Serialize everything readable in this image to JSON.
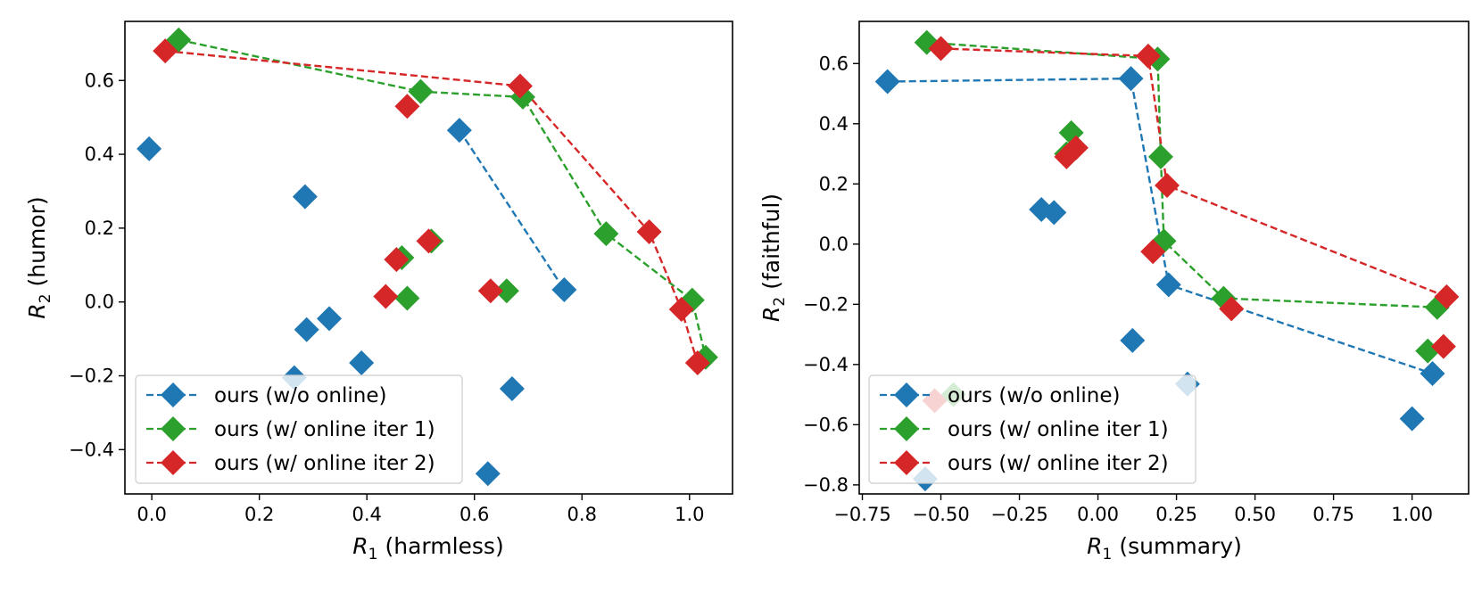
{
  "chart_data": [
    {
      "type": "scatter",
      "title": "",
      "xlabel_var": "R",
      "xlabel_sub": "1",
      "xlabel_text": "(harmless)",
      "ylabel_var": "R",
      "ylabel_sub": "2",
      "ylabel_text": "(humor)",
      "xlim": [
        -0.05,
        1.08
      ],
      "ylim": [
        -0.52,
        0.76
      ],
      "xticks": [
        0.0,
        0.2,
        0.4,
        0.6,
        0.8,
        1.0
      ],
      "xtick_labels": [
        "0.0",
        "0.2",
        "0.4",
        "0.6",
        "0.8",
        "1.0"
      ],
      "yticks": [
        -0.4,
        -0.2,
        0.0,
        0.2,
        0.4,
        0.6
      ],
      "ytick_labels": [
        "−0.4",
        "−0.2",
        "0.0",
        "0.2",
        "0.4",
        "0.6"
      ],
      "legend_position": "lower-left",
      "series": [
        {
          "name": "ours (w/o online)",
          "color": "#1f77b4",
          "points": [
            [
              -0.005,
              0.415
            ],
            [
              0.285,
              0.285
            ],
            [
              0.288,
              -0.075
            ],
            [
              0.33,
              -0.045
            ],
            [
              0.39,
              -0.165
            ],
            [
              0.265,
              -0.205
            ],
            [
              0.572,
              0.465
            ],
            [
              0.767,
              0.033
            ],
            [
              0.67,
              -0.235
            ],
            [
              0.625,
              -0.465
            ]
          ],
          "front": [
            [
              0.572,
              0.465
            ],
            [
              0.767,
              0.033
            ]
          ]
        },
        {
          "name": "ours (w/ online iter 1)",
          "color": "#2ca02c",
          "points": [
            [
              0.05,
              0.71
            ],
            [
              0.5,
              0.57
            ],
            [
              0.69,
              0.555
            ],
            [
              0.845,
              0.185
            ],
            [
              1.005,
              0.005
            ],
            [
              1.03,
              -0.15
            ],
            [
              0.465,
              0.12
            ],
            [
              0.52,
              0.165
            ],
            [
              0.475,
              0.01
            ],
            [
              0.66,
              0.03
            ]
          ],
          "front": [
            [
              0.05,
              0.71
            ],
            [
              0.5,
              0.57
            ],
            [
              0.69,
              0.555
            ],
            [
              0.845,
              0.185
            ],
            [
              1.005,
              0.005
            ],
            [
              1.03,
              -0.15
            ]
          ]
        },
        {
          "name": "ours (w/ online iter 2)",
          "color": "#d62728",
          "points": [
            [
              0.025,
              0.68
            ],
            [
              0.685,
              0.585
            ],
            [
              0.925,
              0.19
            ],
            [
              0.985,
              -0.02
            ],
            [
              1.015,
              -0.165
            ],
            [
              0.475,
              0.53
            ],
            [
              0.455,
              0.115
            ],
            [
              0.515,
              0.165
            ],
            [
              0.435,
              0.015
            ],
            [
              0.63,
              0.03
            ]
          ],
          "front": [
            [
              0.025,
              0.68
            ],
            [
              0.685,
              0.585
            ],
            [
              0.925,
              0.19
            ],
            [
              0.985,
              -0.02
            ],
            [
              1.015,
              -0.165
            ]
          ]
        }
      ]
    },
    {
      "type": "scatter",
      "title": "",
      "xlabel_var": "R",
      "xlabel_sub": "1",
      "xlabel_text": "(summary)",
      "ylabel_var": "R",
      "ylabel_sub": "2",
      "ylabel_text": "(faithful)",
      "xlim": [
        -0.76,
        1.18
      ],
      "ylim": [
        -0.83,
        0.74
      ],
      "xticks": [
        -0.75,
        -0.5,
        -0.25,
        0.0,
        0.25,
        0.5,
        0.75,
        1.0
      ],
      "xtick_labels": [
        "−0.75",
        "−0.50",
        "−0.25",
        "0.00",
        "0.25",
        "0.50",
        "0.75",
        "1.00"
      ],
      "yticks": [
        -0.8,
        -0.6,
        -0.4,
        -0.2,
        0.0,
        0.2,
        0.4,
        0.6
      ],
      "ytick_labels": [
        "−0.8",
        "−0.6",
        "−0.4",
        "−0.2",
        "0.0",
        "0.2",
        "0.4",
        "0.6"
      ],
      "legend_position": "lower-left",
      "series": [
        {
          "name": "ours (w/o online)",
          "color": "#1f77b4",
          "points": [
            [
              -0.67,
              0.54
            ],
            [
              0.105,
              0.55
            ],
            [
              -0.18,
              0.115
            ],
            [
              -0.14,
              0.105
            ],
            [
              0.225,
              -0.135
            ],
            [
              0.11,
              -0.32
            ],
            [
              0.285,
              -0.465
            ],
            [
              1.065,
              -0.43
            ],
            [
              1.0,
              -0.58
            ],
            [
              -0.55,
              -0.78
            ]
          ],
          "front": [
            [
              -0.67,
              0.54
            ],
            [
              0.105,
              0.55
            ],
            [
              0.225,
              -0.135
            ],
            [
              1.065,
              -0.43
            ]
          ]
        },
        {
          "name": "ours (w/ online iter 1)",
          "color": "#2ca02c",
          "points": [
            [
              -0.545,
              0.67
            ],
            [
              0.19,
              0.615
            ],
            [
              0.2,
              0.29
            ],
            [
              0.21,
              0.01
            ],
            [
              0.4,
              -0.18
            ],
            [
              1.08,
              -0.21
            ],
            [
              -0.085,
              0.37
            ],
            [
              1.05,
              -0.355
            ],
            [
              -0.46,
              -0.5
            ],
            [
              -0.1,
              0.3
            ]
          ],
          "front": [
            [
              -0.545,
              0.67
            ],
            [
              0.19,
              0.615
            ],
            [
              0.2,
              0.29
            ],
            [
              0.21,
              0.01
            ],
            [
              0.4,
              -0.18
            ],
            [
              1.08,
              -0.21
            ]
          ]
        },
        {
          "name": "ours (w/ online iter 2)",
          "color": "#d62728",
          "points": [
            [
              -0.5,
              0.65
            ],
            [
              0.16,
              0.625
            ],
            [
              0.22,
              0.195
            ],
            [
              1.11,
              -0.175
            ],
            [
              -0.1,
              0.29
            ],
            [
              -0.07,
              0.32
            ],
            [
              0.175,
              -0.025
            ],
            [
              0.425,
              -0.215
            ],
            [
              1.1,
              -0.34
            ],
            [
              -0.52,
              -0.52
            ]
          ],
          "front": [
            [
              -0.5,
              0.65
            ],
            [
              0.16,
              0.625
            ],
            [
              0.22,
              0.195
            ],
            [
              1.11,
              -0.175
            ]
          ]
        }
      ]
    }
  ]
}
